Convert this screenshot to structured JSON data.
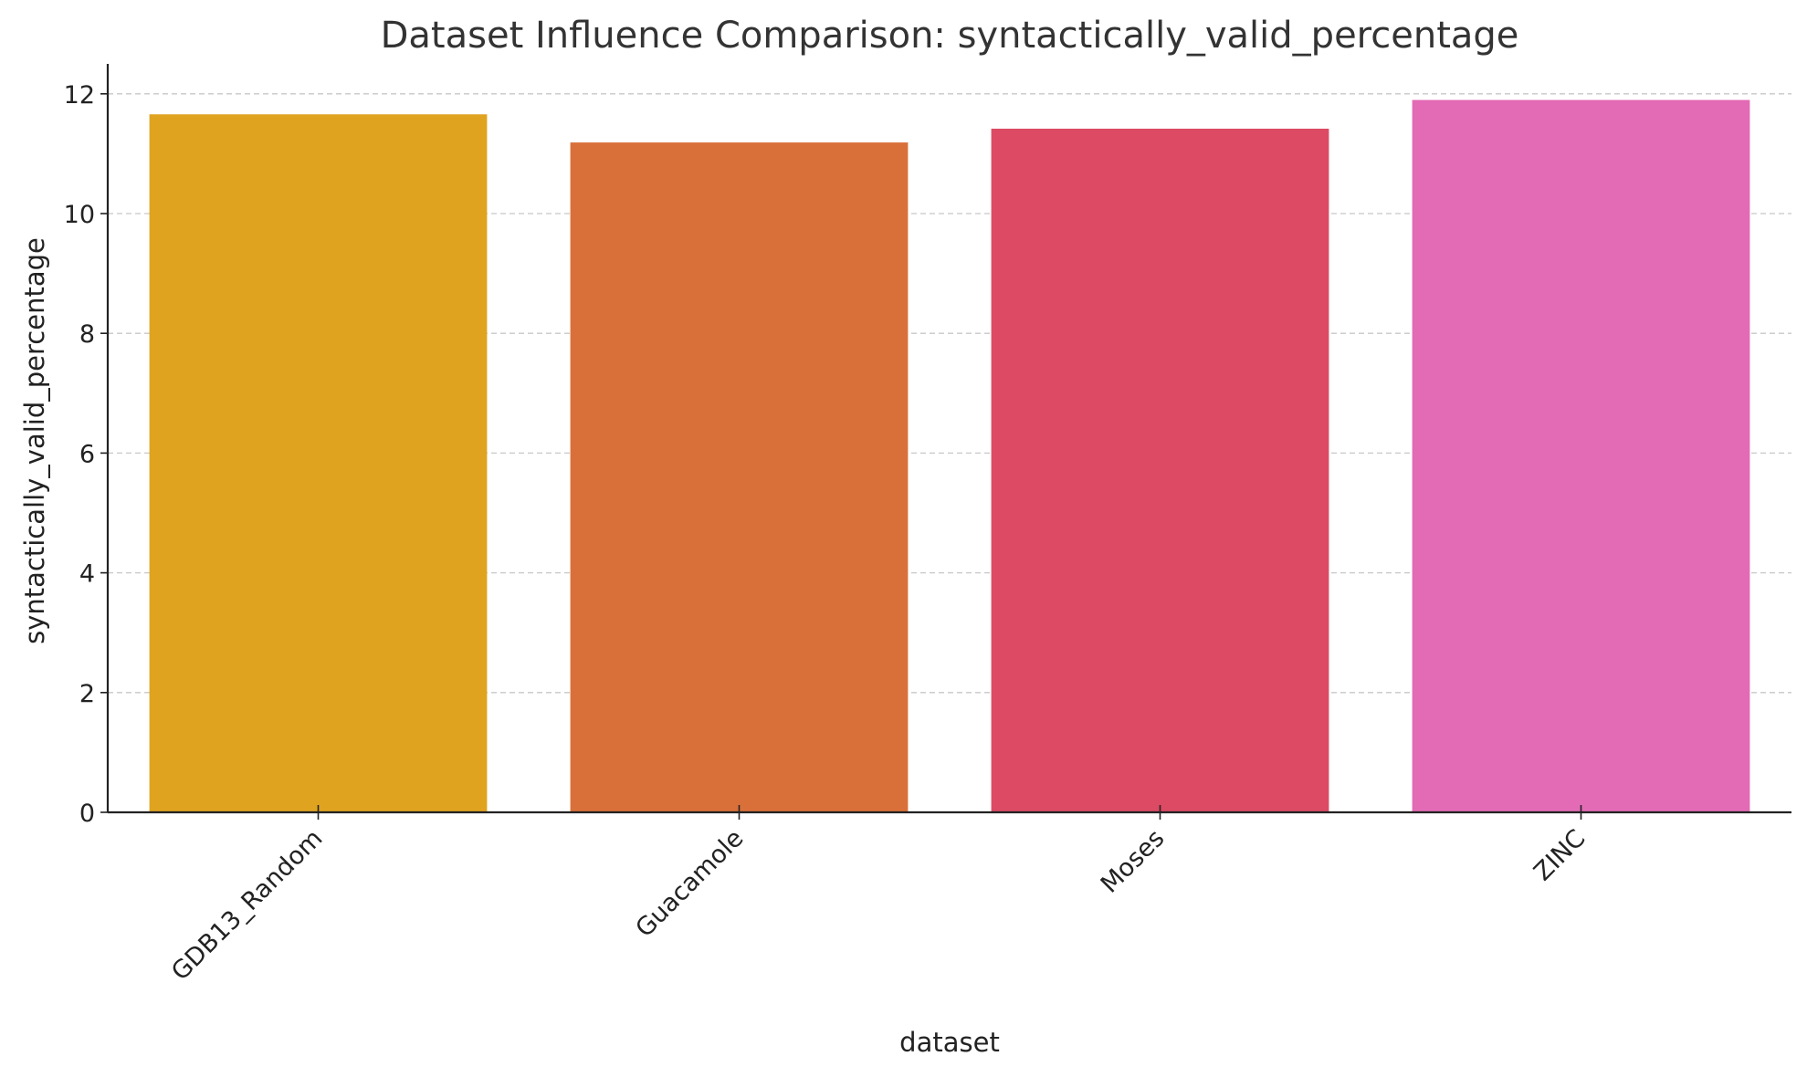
{
  "chart_data": {
    "type": "bar",
    "title": "Dataset Influence Comparison: syntactically_valid_percentage",
    "xlabel": "dataset",
    "ylabel": "syntactically_valid_percentage",
    "categories": [
      "GDB13_Random",
      "Guacamole",
      "Moses",
      "ZINC"
    ],
    "values": [
      11.65,
      11.18,
      11.41,
      11.89
    ],
    "colors": [
      "#e0a320",
      "#d9703a",
      "#dc4a64",
      "#e36bb5"
    ],
    "ylim": [
      0,
      12.5
    ],
    "yticks": [
      0,
      2,
      4,
      6,
      8,
      10,
      12
    ],
    "grid": "y-dashed",
    "legend": "none"
  }
}
